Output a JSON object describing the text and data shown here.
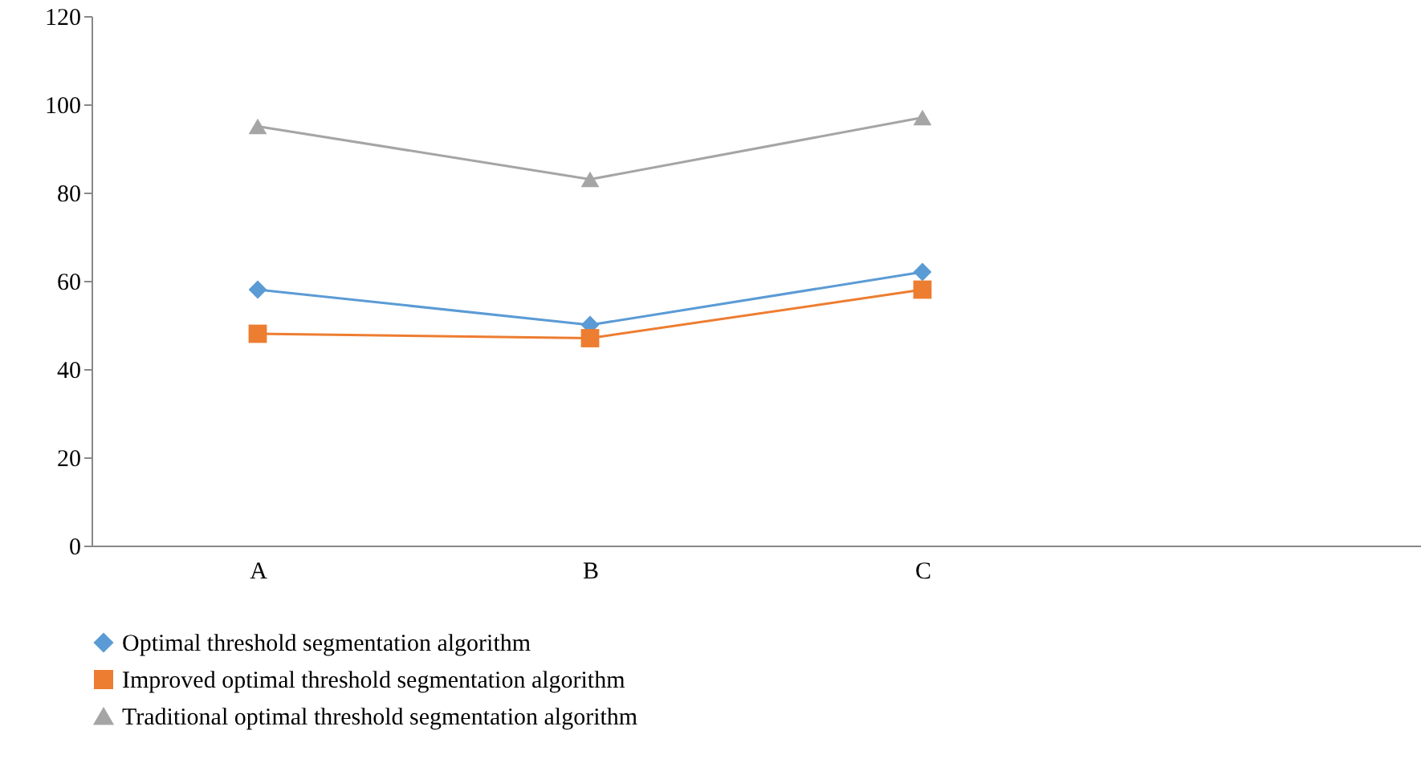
{
  "chart_data": {
    "type": "line",
    "categories": [
      "A",
      "B",
      "C",
      null
    ],
    "series": [
      {
        "name": "Optimal threshold segmentation algorithm",
        "color": "#5b9bd5",
        "marker": "diamond",
        "values": [
          58,
          50,
          62,
          null
        ]
      },
      {
        "name": "Improved optimal threshold segmentation algorithm",
        "color": "#ed7d31",
        "marker": "square",
        "values": [
          48,
          47,
          58,
          null
        ]
      },
      {
        "name": "Traditional optimal threshold segmentation algorithm",
        "color": "#a5a5a5",
        "marker": "triangle",
        "values": [
          95,
          83,
          97,
          null
        ]
      }
    ],
    "ylim": [
      0,
      120
    ],
    "yticks": [
      0,
      20,
      40,
      60,
      80,
      100,
      120
    ],
    "grid": false,
    "legend": "bottom"
  }
}
